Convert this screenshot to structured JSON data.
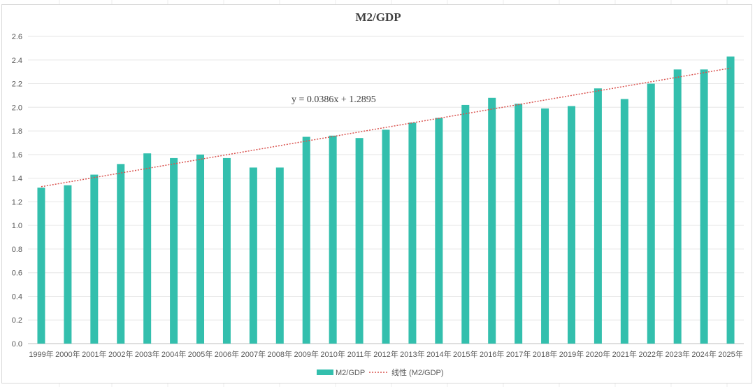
{
  "colors": {
    "bar": "#33bfad",
    "trendline": "#d9534f",
    "gridline": "#e6e6e6",
    "axis_text": "#595959",
    "title_text": "#404040"
  },
  "chart_data": {
    "type": "bar",
    "title": "M2/GDP",
    "xlabel": "",
    "ylabel": "",
    "ylim": [
      0,
      2.6
    ],
    "yticks": [
      "0.0",
      "0.2",
      "0.4",
      "0.6",
      "0.8",
      "1.0",
      "1.2",
      "1.4",
      "1.6",
      "1.8",
      "2.0",
      "2.2",
      "2.4",
      "2.6"
    ],
    "grid": true,
    "legend_position": "bottom",
    "categories": [
      "1999年",
      "2000年",
      "2001年",
      "2002年",
      "2003年",
      "2004年",
      "2005年",
      "2006年",
      "2007年",
      "2008年",
      "2009年",
      "2010年",
      "2011年",
      "2012年",
      "2013年",
      "2014年",
      "2015年",
      "2016年",
      "2017年",
      "2018年",
      "2019年",
      "2020年",
      "2021年",
      "2022年",
      "2023年",
      "2024年",
      "2025年"
    ],
    "series": [
      {
        "name": "M2/GDP",
        "values": [
          1.32,
          1.34,
          1.43,
          1.52,
          1.61,
          1.57,
          1.6,
          1.57,
          1.49,
          1.49,
          1.75,
          1.76,
          1.74,
          1.81,
          1.87,
          1.91,
          2.02,
          2.08,
          2.03,
          1.99,
          2.01,
          2.16,
          2.07,
          2.2,
          2.32,
          2.32,
          2.43
        ]
      }
    ],
    "trendline": {
      "name": "线性 (M2/GDP)",
      "slope": 0.0386,
      "intercept": 1.2895,
      "equation": "y = 0.0386x + 1.2895"
    }
  }
}
